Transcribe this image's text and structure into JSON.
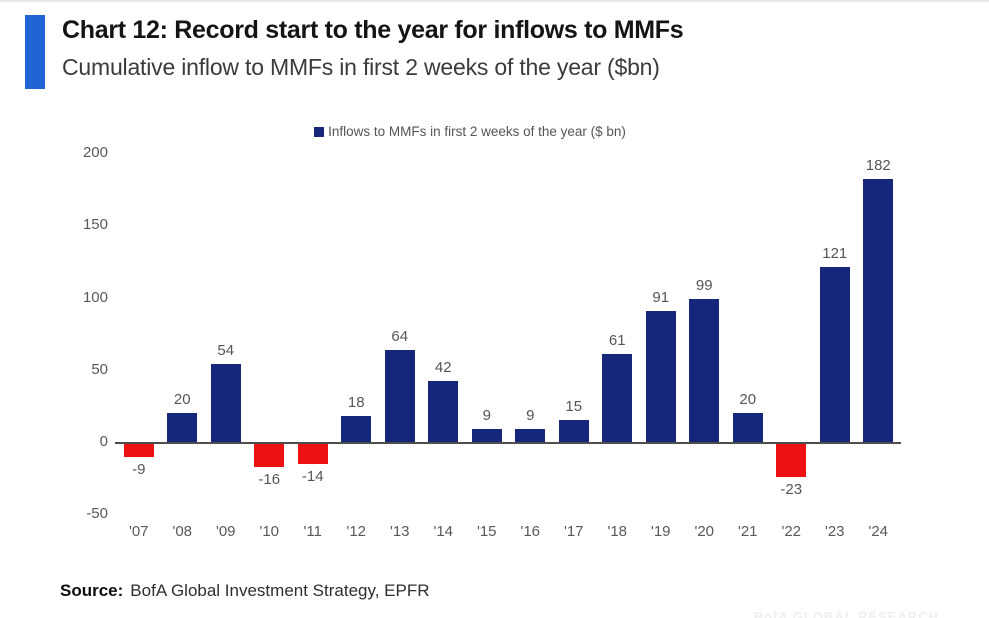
{
  "header": {
    "title": "Chart 12: Record start to the year for inflows to MMFs",
    "subtitle": "Cumulative inflow to MMFs in first 2 weeks of the year ($bn)",
    "accent_color": "#2064d4"
  },
  "chart_data": {
    "type": "bar",
    "title": "Chart 12: Record start to the year for inflows to MMFs",
    "subtitle": "Cumulative inflow to MMFs in first 2 weeks of the year ($bn)",
    "legend_label": "Inflows to MMFs in first 2 weeks of the year ($ bn)",
    "legend_position": "top-center",
    "categories": [
      "'07",
      "'08",
      "'09",
      "'10",
      "'11",
      "'12",
      "'13",
      "'14",
      "'15",
      "'16",
      "'17",
      "'18",
      "'19",
      "'20",
      "'21",
      "'22",
      "'23",
      "'24"
    ],
    "values": [
      -9,
      20,
      54,
      -16,
      -14,
      18,
      64,
      42,
      9,
      9,
      15,
      61,
      91,
      99,
      20,
      -23,
      121,
      182
    ],
    "xlabel": "",
    "ylabel": "",
    "ylim": [
      -50,
      200
    ],
    "yticks": [
      200,
      150,
      100,
      50,
      0,
      -50
    ],
    "grid": false,
    "data_labels": true,
    "bar_color_positive": "#16277b",
    "bar_color_negative": "#ee1111",
    "label_color": "#565656"
  },
  "footer": {
    "source_label": "Source:",
    "source_text": "BofA Global Investment Strategy, EPFR",
    "watermark": "BofA GLOBAL RESEARCH"
  }
}
